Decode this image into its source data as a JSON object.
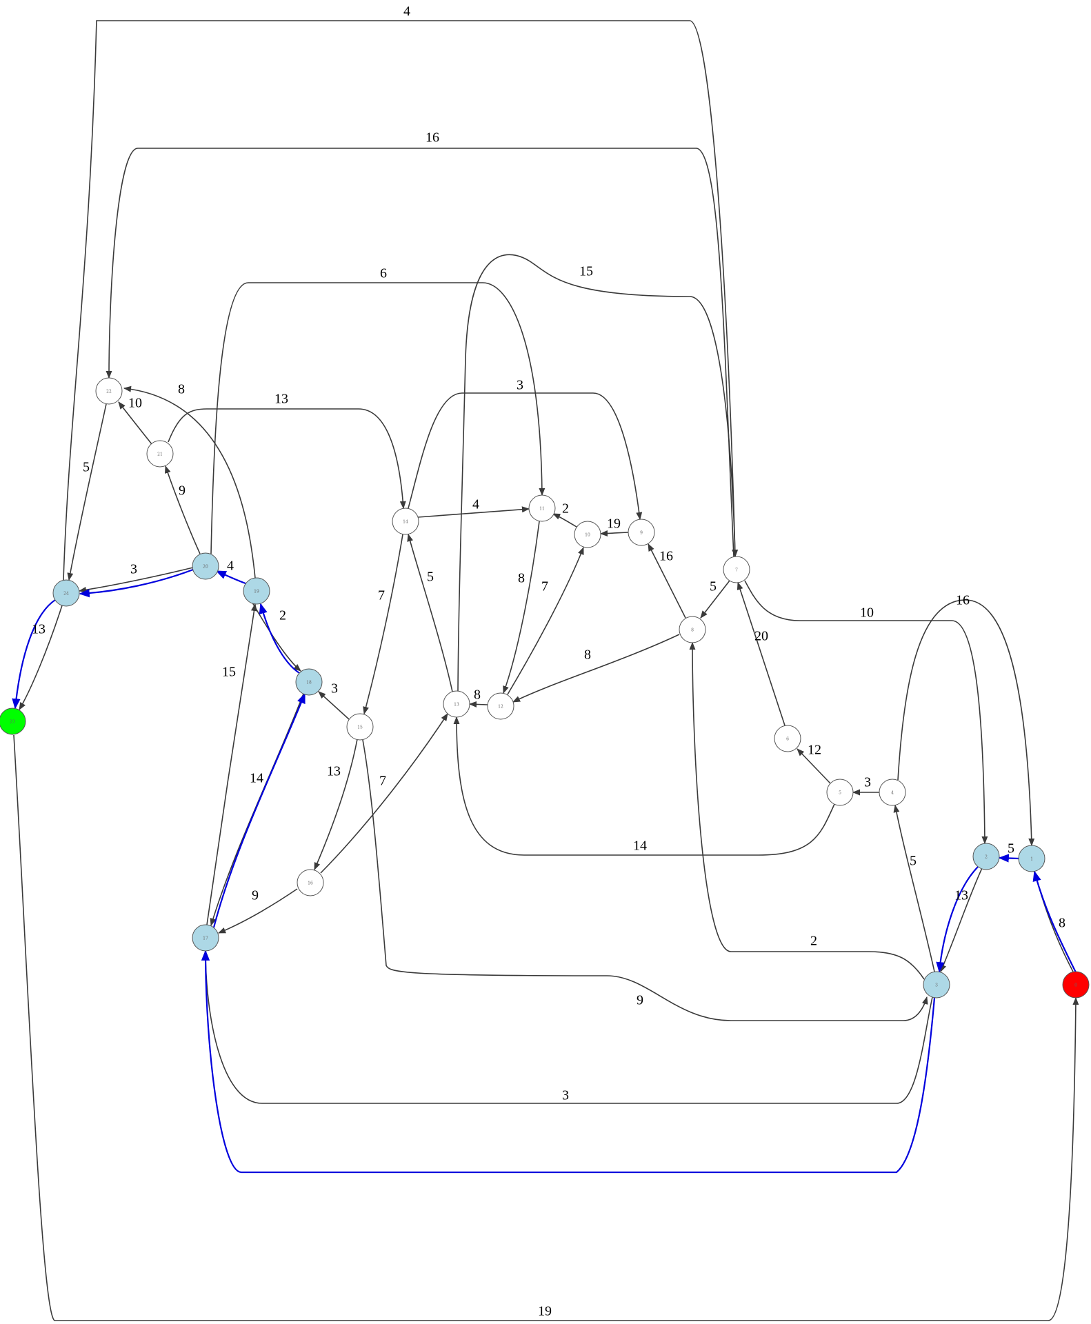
{
  "colors": {
    "node_default": "#ffffff",
    "node_path": "#add8e6",
    "node_source": "#ff0000",
    "node_target": "#00ff00",
    "edge_default": "#3a3a3a",
    "edge_path": "#0000dd"
  },
  "nodes": [
    {
      "id": "0",
      "label": "0",
      "role": "source"
    },
    {
      "id": "1",
      "label": "1",
      "role": "path"
    },
    {
      "id": "2",
      "label": "2",
      "role": "path"
    },
    {
      "id": "3",
      "label": "3",
      "role": "path"
    },
    {
      "id": "4",
      "label": "4",
      "role": "default"
    },
    {
      "id": "5",
      "label": "5",
      "role": "default"
    },
    {
      "id": "6",
      "label": "6",
      "role": "default"
    },
    {
      "id": "7",
      "label": "7",
      "role": "default"
    },
    {
      "id": "8",
      "label": "8",
      "role": "default"
    },
    {
      "id": "9",
      "label": "9",
      "role": "default"
    },
    {
      "id": "10",
      "label": "10",
      "role": "default"
    },
    {
      "id": "11",
      "label": "11",
      "role": "default"
    },
    {
      "id": "12",
      "label": "12",
      "role": "default"
    },
    {
      "id": "13",
      "label": "13",
      "role": "default"
    },
    {
      "id": "14",
      "label": "14",
      "role": "default"
    },
    {
      "id": "15",
      "label": "15",
      "role": "default"
    },
    {
      "id": "16",
      "label": "16",
      "role": "default"
    },
    {
      "id": "17",
      "label": "17",
      "role": "path"
    },
    {
      "id": "18",
      "label": "18",
      "role": "path"
    },
    {
      "id": "19",
      "label": "19",
      "role": "path"
    },
    {
      "id": "20",
      "label": "20",
      "role": "path"
    },
    {
      "id": "21",
      "label": "21",
      "role": "default"
    },
    {
      "id": "22",
      "label": "22",
      "role": "default"
    },
    {
      "id": "23",
      "label": "23",
      "role": "target"
    },
    {
      "id": "24",
      "label": "24",
      "role": "path"
    }
  ],
  "edges": [
    {
      "from": "0",
      "to": "1",
      "weight": "8",
      "on_path": true
    },
    {
      "from": "1",
      "to": "2",
      "weight": "5",
      "on_path": true
    },
    {
      "from": "2",
      "to": "3",
      "weight": "13",
      "on_path": true
    },
    {
      "from": "3",
      "to": "17",
      "weight": "",
      "on_path": true
    },
    {
      "from": "17",
      "to": "18",
      "weight": "14",
      "on_path": true
    },
    {
      "from": "18",
      "to": "19",
      "weight": "2",
      "on_path": true
    },
    {
      "from": "19",
      "to": "20",
      "weight": "4",
      "on_path": true
    },
    {
      "from": "20",
      "to": "24",
      "weight": "3",
      "on_path": true
    },
    {
      "from": "24",
      "to": "23",
      "weight": "13",
      "on_path": true
    },
    {
      "from": "0",
      "to": "3",
      "weight": "",
      "on_path": false
    },
    {
      "from": "2",
      "to": "3",
      "weight": "",
      "on_path": false
    },
    {
      "from": "3",
      "to": "4",
      "weight": "5",
      "on_path": false
    },
    {
      "from": "3",
      "to": "8",
      "weight": "2",
      "on_path": false
    },
    {
      "from": "3",
      "to": "17",
      "weight": "3",
      "on_path": false
    },
    {
      "from": "4",
      "to": "5",
      "weight": "3",
      "on_path": false
    },
    {
      "from": "4",
      "to": "1",
      "weight": "16",
      "on_path": false
    },
    {
      "from": "5",
      "to": "6",
      "weight": "12",
      "on_path": false
    },
    {
      "from": "5",
      "to": "13",
      "weight": "14",
      "on_path": false
    },
    {
      "from": "6",
      "to": "7",
      "weight": "20",
      "on_path": false
    },
    {
      "from": "7",
      "to": "8",
      "weight": "5",
      "on_path": false
    },
    {
      "from": "7",
      "to": "2",
      "weight": "10",
      "on_path": false
    },
    {
      "from": "8",
      "to": "9",
      "weight": "16",
      "on_path": false
    },
    {
      "from": "8",
      "to": "12",
      "weight": "8",
      "on_path": false
    },
    {
      "from": "9",
      "to": "10",
      "weight": "19",
      "on_path": false
    },
    {
      "from": "10",
      "to": "11",
      "weight": "2",
      "on_path": false
    },
    {
      "from": "11",
      "to": "12",
      "weight": "8",
      "on_path": false
    },
    {
      "from": "12",
      "to": "10",
      "weight": "7",
      "on_path": false
    },
    {
      "from": "12",
      "to": "13",
      "weight": "8",
      "on_path": false
    },
    {
      "from": "13",
      "to": "14",
      "weight": "5",
      "on_path": false
    },
    {
      "from": "13",
      "to": "7",
      "weight": "15",
      "on_path": false
    },
    {
      "from": "14",
      "to": "11",
      "weight": "4",
      "on_path": false
    },
    {
      "from": "14",
      "to": "9",
      "weight": "3",
      "on_path": false
    },
    {
      "from": "14",
      "to": "15",
      "weight": "7",
      "on_path": false
    },
    {
      "from": "15",
      "to": "18",
      "weight": "3",
      "on_path": false
    },
    {
      "from": "15",
      "to": "16",
      "weight": "13",
      "on_path": false
    },
    {
      "from": "15",
      "to": "3",
      "weight": "9",
      "on_path": false
    },
    {
      "from": "16",
      "to": "17",
      "weight": "9",
      "on_path": false
    },
    {
      "from": "16",
      "to": "13",
      "weight": "7",
      "on_path": false
    },
    {
      "from": "17",
      "to": "19",
      "weight": "15",
      "on_path": false
    },
    {
      "from": "19",
      "to": "22",
      "weight": "8",
      "on_path": false
    },
    {
      "from": "20",
      "to": "21",
      "weight": "9",
      "on_path": false
    },
    {
      "from": "20",
      "to": "11",
      "weight": "6",
      "on_path": false
    },
    {
      "from": "21",
      "to": "22",
      "weight": "10",
      "on_path": false
    },
    {
      "from": "21",
      "to": "14",
      "weight": "13",
      "on_path": false
    },
    {
      "from": "22",
      "to": "24",
      "weight": "5",
      "on_path": false
    },
    {
      "from": "24",
      "to": "7",
      "weight": "4",
      "on_path": false
    },
    {
      "from": "7",
      "to": "22",
      "weight": "16",
      "on_path": false
    },
    {
      "from": "23",
      "to": "0",
      "weight": "19",
      "on_path": false
    },
    {
      "from": "20",
      "to": "24",
      "weight": "",
      "on_path": false
    },
    {
      "from": "24",
      "to": "23",
      "weight": "",
      "on_path": false
    },
    {
      "from": "18",
      "to": "17",
      "weight": "",
      "on_path": false
    },
    {
      "from": "19",
      "to": "18",
      "weight": "",
      "on_path": false
    }
  ]
}
